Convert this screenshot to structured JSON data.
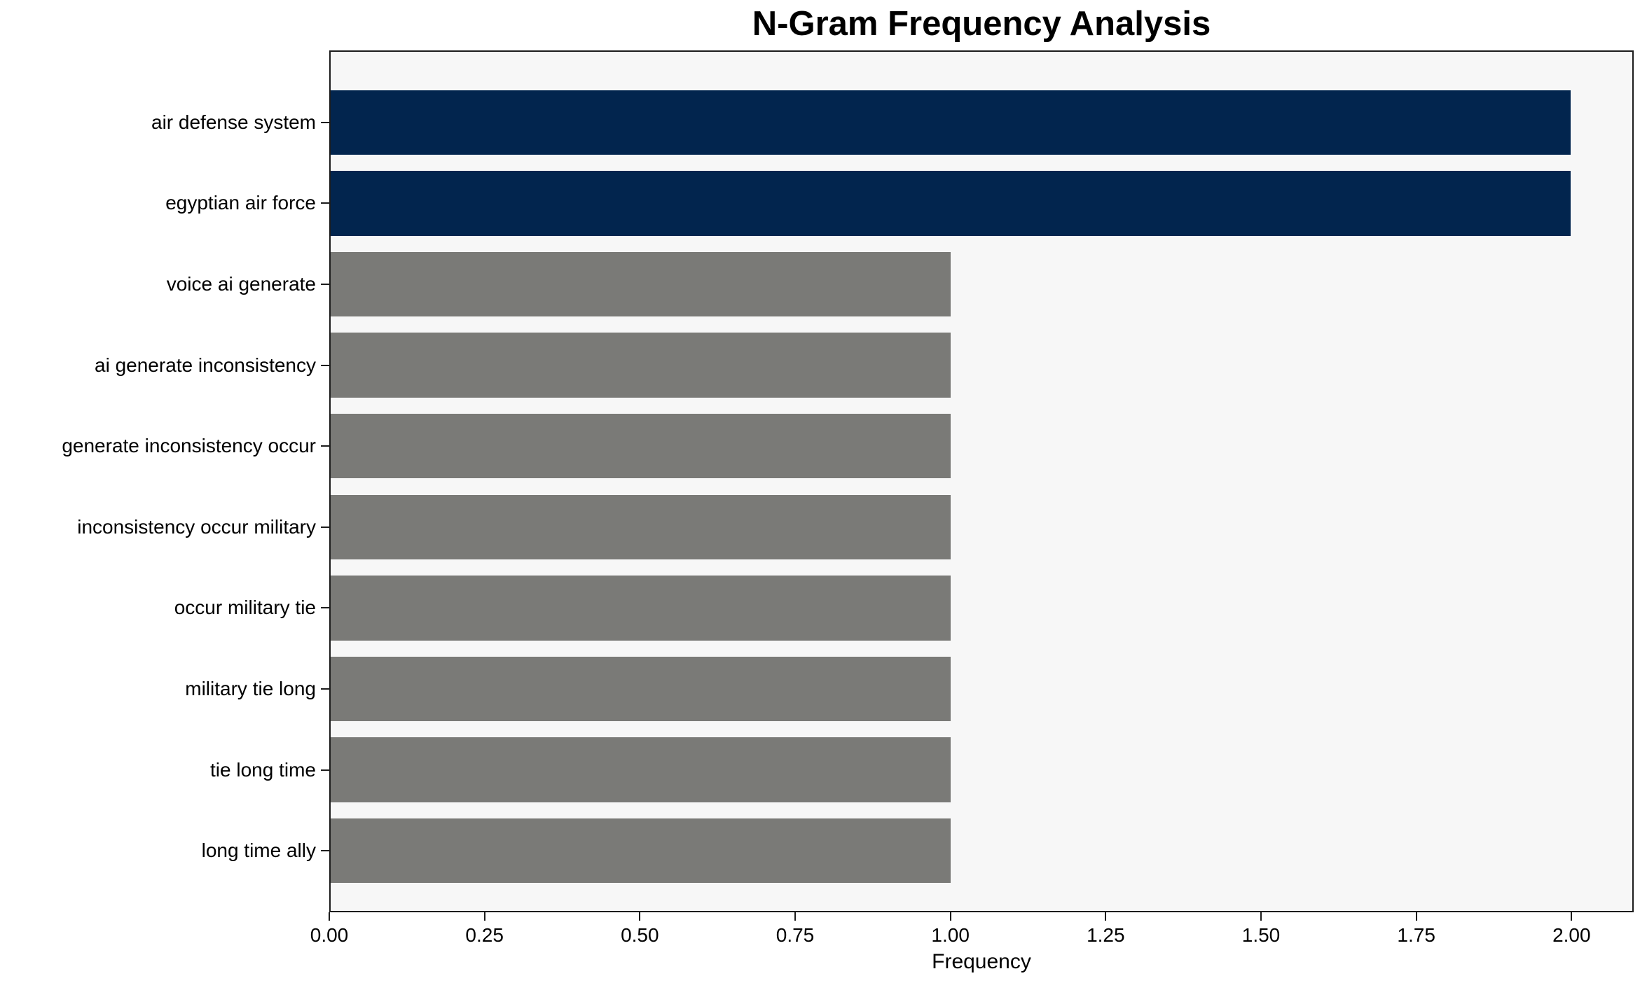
{
  "chart_data": {
    "type": "bar",
    "orientation": "horizontal",
    "title": "N-Gram Frequency Analysis",
    "xlabel": "Frequency",
    "ylabel": "",
    "categories": [
      "air defense system",
      "egyptian air force",
      "voice ai generate",
      "ai generate inconsistency",
      "generate inconsistency occur",
      "inconsistency occur military",
      "occur military tie",
      "military tie long",
      "tie long time",
      "long time ally"
    ],
    "values": [
      2,
      2,
      1,
      1,
      1,
      1,
      1,
      1,
      1,
      1
    ],
    "bar_colors": [
      "#02254e",
      "#02254e",
      "#7a7a77",
      "#7a7a77",
      "#7a7a77",
      "#7a7a77",
      "#7a7a77",
      "#7a7a77",
      "#7a7a77",
      "#7a7a77"
    ],
    "xlim": [
      0,
      2.1
    ],
    "xticks": [
      0.0,
      0.25,
      0.5,
      0.75,
      1.0,
      1.25,
      1.5,
      1.75,
      2.0
    ],
    "xtick_labels": [
      "0.00",
      "0.25",
      "0.50",
      "0.75",
      "1.00",
      "1.25",
      "1.50",
      "1.75",
      "2.00"
    ],
    "grid": false,
    "legend": null,
    "colors": {
      "highlight": "#02254e",
      "default": "#7a7a77",
      "plot_background": "#f7f7f7",
      "figure_background": "#ffffff",
      "spine": "#1c1c1c",
      "text": "#000000"
    }
  }
}
